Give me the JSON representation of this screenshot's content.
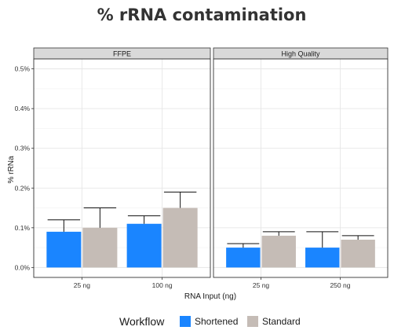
{
  "chart_data": {
    "type": "bar",
    "title": "% rRNA contamination",
    "xlabel": "RNA Input (ng)",
    "ylabel": "% rRNa",
    "ylim": [
      0,
      0.5
    ],
    "y_ticks": [
      "0.0%",
      "0.1%",
      "0.2%",
      "0.3%",
      "0.4%",
      "0.5%"
    ],
    "y_tick_values": [
      0,
      0.1,
      0.2,
      0.3,
      0.4,
      0.5
    ],
    "grid": true,
    "legend_title": "Workflow",
    "legend_position": "bottom",
    "series_names": [
      "Shortened",
      "Standard"
    ],
    "colors": {
      "Shortened": "#1a85ff",
      "Standard": "#c5bcb6"
    },
    "facets": [
      {
        "label": "FFPE",
        "categories": [
          "25 ng",
          "100 ng"
        ],
        "series": [
          {
            "name": "Shortened",
            "values": [
              0.09,
              0.11
            ],
            "error_upper": [
              0.12,
              0.13
            ]
          },
          {
            "name": "Standard",
            "values": [
              0.1,
              0.15
            ],
            "error_upper": [
              0.15,
              0.19
            ]
          }
        ]
      },
      {
        "label": "High Quality",
        "categories": [
          "25 ng",
          "250 ng"
        ],
        "series": [
          {
            "name": "Shortened",
            "values": [
              0.05,
              0.05
            ],
            "error_upper": [
              0.06,
              0.09
            ]
          },
          {
            "name": "Standard",
            "values": [
              0.08,
              0.07
            ],
            "error_upper": [
              0.09,
              0.08
            ]
          }
        ]
      }
    ]
  }
}
